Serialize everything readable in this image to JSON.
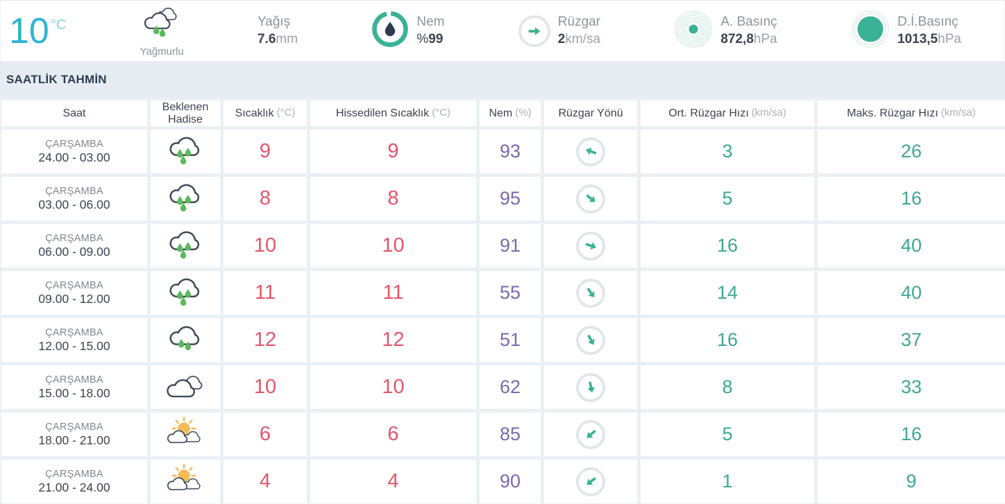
{
  "colors": {
    "accent_cyan": "#2fb4d2",
    "accent_green_drops": "#5cb85c",
    "accent_teal": "#3ab295",
    "temp_red": "#e4556a",
    "humidity_purple": "#7a69ad",
    "wind_teal": "#3fa695",
    "text_dark": "#3a4450",
    "text_gray": "#8b949c",
    "sun_yellow": "#f2bc57",
    "cloud_outline": "#3f4a5a"
  },
  "current": {
    "temperature": "10",
    "temperature_unit": "°C",
    "condition_icon": "rainy-clouds",
    "condition_label": "Yağmurlu",
    "metrics": {
      "precipitation": {
        "label": "Yağış",
        "prefix": "",
        "value": "7.6",
        "unit": "mm"
      },
      "humidity": {
        "label": "Nem",
        "prefix": "%",
        "value": "99",
        "unit": ""
      },
      "wind": {
        "label": "Rüzgar",
        "prefix": "",
        "value": "2",
        "unit": "km/sa"
      },
      "pressure_actual": {
        "label": "A. Basınç",
        "prefix": "",
        "value": "872,8",
        "unit": "hPa"
      },
      "pressure_sea_level": {
        "label": "D.İ.Basınç",
        "prefix": "",
        "value": "1013,5",
        "unit": "hPa"
      }
    }
  },
  "section_title": "SAATLİK TAHMİN",
  "table": {
    "columns": [
      {
        "label": "Saat",
        "unit": ""
      },
      {
        "label": "Beklenen Hadise",
        "unit": ""
      },
      {
        "label": "Sıcaklık",
        "unit": "(°C)"
      },
      {
        "label": "Hissedilen Sıcaklık",
        "unit": "(°C)"
      },
      {
        "label": "Nem",
        "unit": "(%)"
      },
      {
        "label": "Rüzgar Yönü",
        "unit": ""
      },
      {
        "label": "Ort. Rüzgar Hızı",
        "unit": "(km/sa)"
      },
      {
        "label": "Maks. Rüzgar Hızı",
        "unit": "(km/sa)"
      }
    ],
    "rows": [
      {
        "day": "ÇARŞAMBA",
        "hours": "24.00 - 03.00",
        "icon": "rain-heavy",
        "temp": "9",
        "feels": "9",
        "humidity": "93",
        "wind_dir_deg": -160,
        "wind_avg": "3",
        "wind_max": "26"
      },
      {
        "day": "ÇARŞAMBA",
        "hours": "03.00 - 06.00",
        "icon": "rain-heavy",
        "temp": "8",
        "feels": "8",
        "humidity": "95",
        "wind_dir_deg": 38,
        "wind_avg": "5",
        "wind_max": "16"
      },
      {
        "day": "ÇARŞAMBA",
        "hours": "06.00 - 09.00",
        "icon": "rain-heavy",
        "temp": "10",
        "feels": "10",
        "humidity": "91",
        "wind_dir_deg": 18,
        "wind_avg": "16",
        "wind_max": "40"
      },
      {
        "day": "ÇARŞAMBA",
        "hours": "09.00 - 12.00",
        "icon": "rain-heavy",
        "temp": "11",
        "feels": "11",
        "humidity": "55",
        "wind_dir_deg": 55,
        "wind_avg": "14",
        "wind_max": "40"
      },
      {
        "day": "ÇARŞAMBA",
        "hours": "12.00 - 15.00",
        "icon": "rain-light",
        "temp": "12",
        "feels": "12",
        "humidity": "51",
        "wind_dir_deg": 62,
        "wind_avg": "16",
        "wind_max": "37"
      },
      {
        "day": "ÇARŞAMBA",
        "hours": "15.00 - 18.00",
        "icon": "cloudy",
        "temp": "10",
        "feels": "10",
        "humidity": "62",
        "wind_dir_deg": 78,
        "wind_avg": "8",
        "wind_max": "33"
      },
      {
        "day": "ÇARŞAMBA",
        "hours": "18.00 - 21.00",
        "icon": "partly-sunny",
        "temp": "6",
        "feels": "6",
        "humidity": "85",
        "wind_dir_deg": 140,
        "wind_avg": "5",
        "wind_max": "16"
      },
      {
        "day": "ÇARŞAMBA",
        "hours": "21.00 - 24.00",
        "icon": "partly-sunny",
        "temp": "4",
        "feels": "4",
        "humidity": "90",
        "wind_dir_deg": 142,
        "wind_avg": "1",
        "wind_max": "9"
      }
    ]
  }
}
